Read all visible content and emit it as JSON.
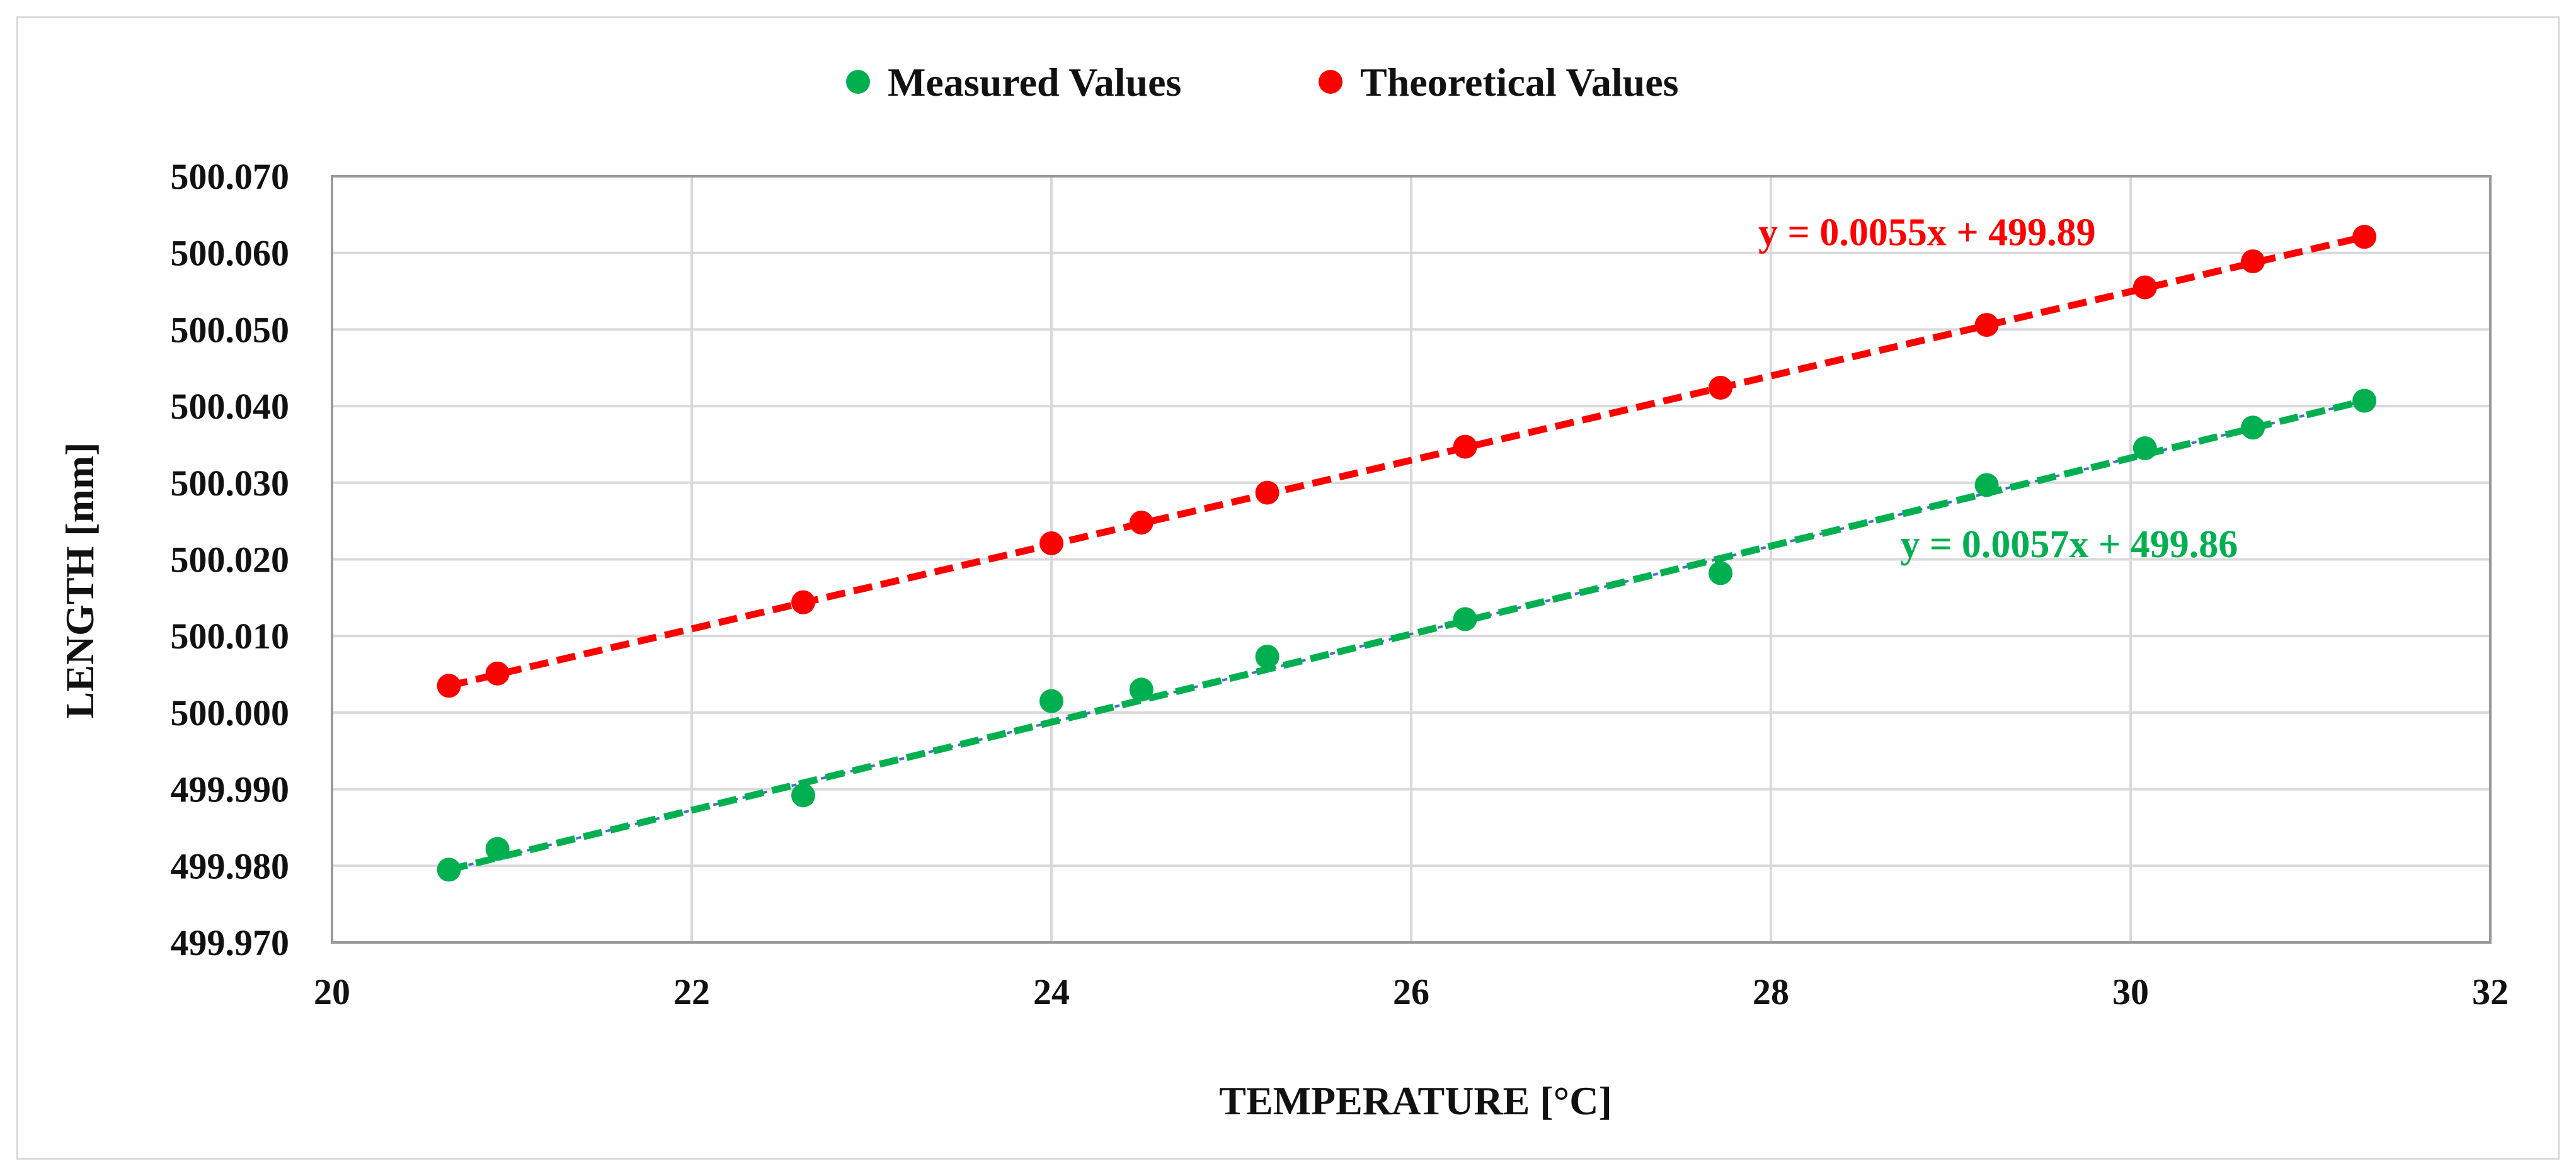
{
  "chart_data": {
    "type": "scatter",
    "title": "",
    "xlabel": "TEMPERATURE [°C]",
    "ylabel": "LENGTH [mm]",
    "xlim": [
      20,
      32
    ],
    "ylim": [
      499.97,
      500.07
    ],
    "x_ticks": [
      "20",
      "22",
      "24",
      "26",
      "28",
      "30",
      "32"
    ],
    "y_ticks": [
      "499.970",
      "499.980",
      "499.990",
      "500.000",
      "500.010",
      "500.020",
      "500.030",
      "500.040",
      "500.050",
      "500.060",
      "500.070"
    ],
    "grid": true,
    "legend_position": "top-center",
    "series": [
      {
        "name": "Measured Values",
        "color": "#00b050",
        "x": [
          20.65,
          20.92,
          22.62,
          24.0,
          24.5,
          25.2,
          26.3,
          27.72,
          29.2,
          30.08,
          30.68,
          31.3
        ],
        "y": [
          499.9795,
          499.9822,
          499.9892,
          500.0015,
          500.003,
          500.0073,
          500.0122,
          500.0182,
          500.0297,
          500.0345,
          500.0372,
          500.0407
        ],
        "trendline": {
          "slope": 0.0057,
          "intercept": 499.86,
          "label": "y = 0.0057x + 499.86",
          "color": "#00b050",
          "x_from": 20.65,
          "x_to": 31.3,
          "y_from": 499.9795,
          "y_to": 500.0407
        }
      },
      {
        "name": "Theoretical Values",
        "color": "#ff0000",
        "x": [
          20.65,
          20.92,
          22.62,
          24.0,
          24.5,
          25.2,
          26.3,
          27.72,
          29.2,
          30.08,
          30.68,
          31.3
        ],
        "y": [
          500.0035,
          500.0051,
          500.0144,
          500.0221,
          500.0248,
          500.0287,
          500.0347,
          500.0424,
          500.0506,
          500.0555,
          500.0589,
          500.0621
        ],
        "trendline": {
          "slope": 0.0055,
          "intercept": 499.89,
          "label": "y = 0.0055x + 499.89",
          "color": "#ff0000",
          "x_from": 20.65,
          "x_to": 31.3,
          "y_from": 500.0035,
          "y_to": 500.0621
        }
      }
    ]
  }
}
